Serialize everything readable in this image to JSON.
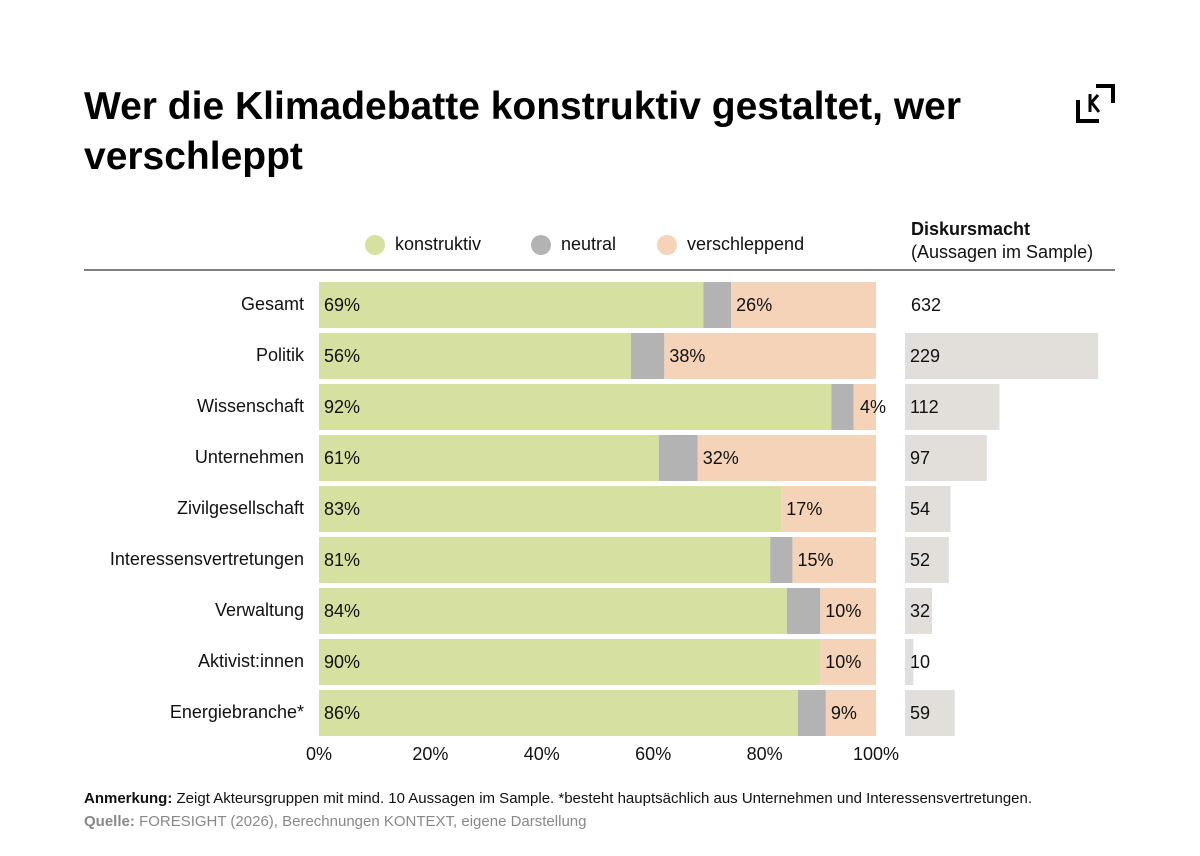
{
  "chart_data": [
    {
      "type": "stacked-bar",
      "title": "Wer die Klimadebatte konstruktiv gestaltet, wer verschleppt",
      "categories": [
        "Gesamt",
        "Politik",
        "Wissenschaft",
        "Unternehmen",
        "Zivilgesellschaft",
        "Interessensvertretungen",
        "Verwaltung",
        "Aktivist:innen",
        "Energiebranche*"
      ],
      "series": [
        {
          "name": "konstruktiv",
          "color": "#d6e0a0",
          "values": [
            69,
            56,
            92,
            61,
            83,
            81,
            84,
            90,
            86
          ],
          "value_labels": [
            "69%",
            "56%",
            "92%",
            "61%",
            "83%",
            "81%",
            "84%",
            "90%",
            "86%"
          ]
        },
        {
          "name": "neutral",
          "color": "#b3b3b3",
          "values": [
            5,
            6,
            4,
            7,
            0,
            4,
            6,
            0,
            5
          ]
        },
        {
          "name": "verschleppend",
          "color": "#f5d3b8",
          "values": [
            26,
            38,
            4,
            32,
            17,
            15,
            10,
            10,
            9
          ],
          "value_labels": [
            "26%",
            "38%",
            "4%",
            "32%",
            "17%",
            "15%",
            "10%",
            "10%",
            "9%"
          ]
        }
      ],
      "xlim": [
        0,
        100
      ],
      "xticks": [
        {
          "value": 0,
          "label": "0%"
        },
        {
          "value": 20,
          "label": "20%"
        },
        {
          "value": 40,
          "label": "40%"
        },
        {
          "value": 60,
          "label": "60%"
        },
        {
          "value": 80,
          "label": "80%"
        },
        {
          "value": 100,
          "label": "100%"
        }
      ]
    },
    {
      "type": "bar",
      "title": "Diskursmacht",
      "subtitle": "(Aussagen im Sample)",
      "total": 632,
      "values": [
        229,
        112,
        97,
        54,
        52,
        32,
        10,
        59
      ],
      "color": "#e2dfda",
      "xlim": [
        0,
        230
      ]
    }
  ],
  "notes": {
    "label": "Anmerkung:",
    "text": "Zeigt Akteursgruppen mit mind. 10 Aussagen im Sample. *besteht hauptsächlich aus Unternehmen und Interessensvertretungen."
  },
  "source": {
    "label": "Quelle:",
    "text": "FORESIGHT (2026), Berechnungen KONTEXT, eigene Darstellung"
  }
}
